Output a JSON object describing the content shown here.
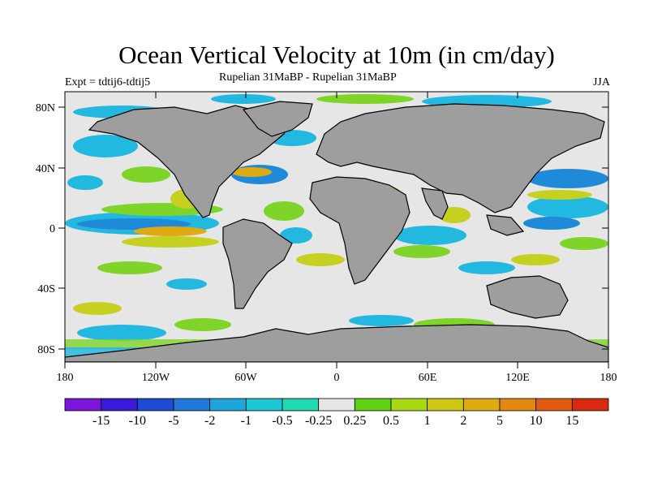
{
  "title": "Ocean Vertical Velocity at 10m (in cm/day)",
  "experiment": "Expt = tdtij6-tdtij5",
  "subtitle": "Rupelian  31MaBP - Rupelian  31MaBP",
  "season": "JJA",
  "axes": {
    "y_labels": [
      "80N",
      "40N",
      "0",
      "40S",
      "80S"
    ],
    "x_labels": [
      "180",
      "120W",
      "60W",
      "0",
      "60E",
      "120E",
      "180"
    ]
  },
  "colorbar": {
    "colors": [
      "#7b16d8",
      "#3b1ad6",
      "#1e4bd2",
      "#1f7ad6",
      "#1ea5d9",
      "#1ec5d4",
      "#22d8b0",
      "#e6e6e6",
      "#5fd016",
      "#a8d816",
      "#cdc816",
      "#e0aa12",
      "#e08812",
      "#e05a12",
      "#d82a0e"
    ],
    "labels": [
      "-15",
      "-10",
      "-5",
      "-2",
      "-1",
      "-0.5",
      "-0.25",
      "0.25",
      "0.5",
      "1",
      "2",
      "5",
      "10",
      "15"
    ]
  },
  "legend_colors": {
    "land": "#9e9e9e",
    "neutral": "#e6e6e6",
    "upwelling_green": "#7fd42a",
    "upwelling_yellow": "#c6d020",
    "downwelling_cyan": "#22b8e0",
    "downwelling_blue": "#1f8ad8",
    "strong_up": "#e08812"
  }
}
